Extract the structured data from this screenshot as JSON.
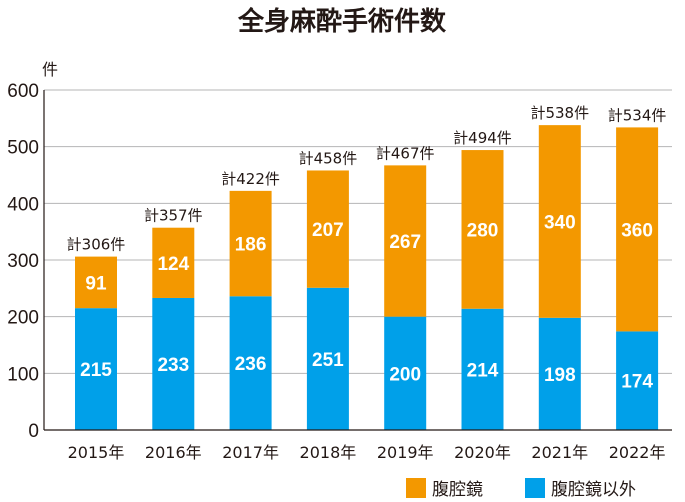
{
  "chart_data": {
    "type": "bar",
    "stacked": true,
    "title": "全身麻酔手術件数",
    "ylabel": "件",
    "xlabel": "",
    "ylim": [
      0,
      600
    ],
    "yticks": [
      0,
      100,
      200,
      300,
      400,
      500,
      600
    ],
    "categories": [
      "2015年",
      "2016年",
      "2017年",
      "2018年",
      "2019年",
      "2020年",
      "2021年",
      "2022年"
    ],
    "series": [
      {
        "name": "腹腔鏡以外",
        "color": "#00a0e9",
        "values": [
          215,
          233,
          236,
          251,
          200,
          214,
          198,
          174
        ]
      },
      {
        "name": "腹腔鏡",
        "color": "#f39800",
        "values": [
          91,
          124,
          186,
          207,
          267,
          280,
          340,
          360
        ]
      }
    ],
    "totals": [
      "計306件",
      "計357件",
      "計422件",
      "計458件",
      "計467件",
      "計494件",
      "計538件",
      "計534件"
    ],
    "legend_position": "bottom-right",
    "grid": true
  }
}
